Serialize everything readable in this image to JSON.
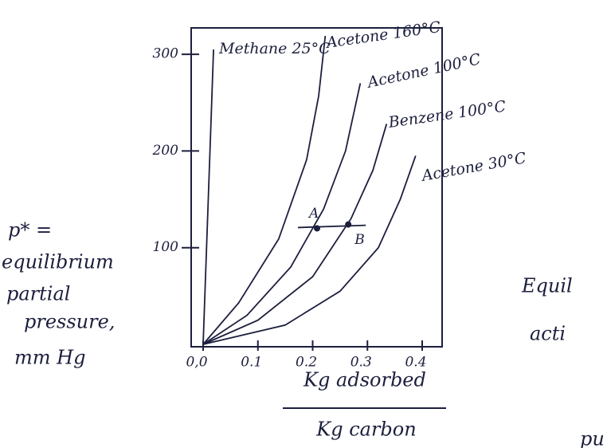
{
  "chart_data": {
    "type": "line",
    "y_label": [
      "p* =",
      "equilibrium",
      "partial",
      "pressure,",
      "mm Hg"
    ],
    "x_label": [
      "Kg adsorbed",
      "Kg carbon"
    ],
    "xlim": [
      0,
      0.42
    ],
    "ylim": [
      0,
      330
    ],
    "xticks": [
      {
        "value": 0,
        "label": "0,0"
      },
      0.1,
      0.2,
      0.3,
      0.4
    ],
    "yticks": [
      100,
      200,
      300
    ],
    "color": "#1c1f3d",
    "series": [
      {
        "name": "Methane 25°C",
        "x": [
          0,
          0.005,
          0.01,
          0.015,
          0.019
        ],
        "values": [
          0,
          80,
          160,
          240,
          305
        ]
      },
      {
        "name": "Acetone 160°C",
        "x": [
          0,
          0.065,
          0.138,
          0.189,
          0.211,
          0.223
        ],
        "values": [
          0,
          43,
          109,
          191,
          257,
          319
        ]
      },
      {
        "name": "Acetone 100°C",
        "x": [
          0,
          0.08,
          0.16,
          0.22,
          0.26,
          0.287
        ],
        "values": [
          0,
          30,
          80,
          140,
          200,
          270
        ]
      },
      {
        "name": "Benzene 100°C",
        "x": [
          0,
          0.1,
          0.2,
          0.27,
          0.31,
          0.335
        ],
        "values": [
          0,
          25,
          70,
          130,
          180,
          228
        ]
      },
      {
        "name": "Acetone 30°C",
        "x": [
          0,
          0.15,
          0.25,
          0.32,
          0.36,
          0.388
        ],
        "values": [
          0,
          20,
          55,
          100,
          150,
          195
        ]
      }
    ],
    "points": [
      {
        "label": "A",
        "x": 0.208,
        "y": 120
      },
      {
        "label": "B",
        "x": 0.265,
        "y": 124
      }
    ],
    "fragments": [
      "Equil",
      "acti",
      "pu"
    ]
  }
}
